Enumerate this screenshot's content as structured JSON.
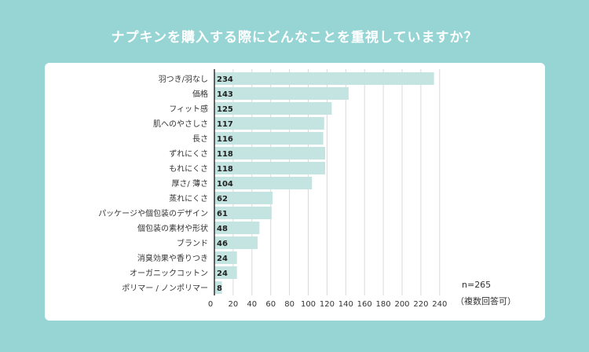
{
  "chart_data": {
    "type": "bar",
    "orientation": "horizontal",
    "title": "ナプキンを購入する際にどんなことを重視していますか？",
    "categories": [
      "羽つき/羽なし",
      "価格",
      "フィット感",
      "肌へのやさしさ",
      "長さ",
      "ずれにくさ",
      "もれにくさ",
      "厚さ/ 薄さ",
      "蒸れにくさ",
      "パッケージや個包装のデザイン",
      "個包装の素材や形状",
      "ブランド",
      "消臭効果や香りつき",
      "オーガニックコットン",
      "ポリマー / ノンポリマー"
    ],
    "values": [
      234,
      143,
      125,
      117,
      116,
      118,
      118,
      104,
      62,
      61,
      48,
      46,
      24,
      24,
      8
    ],
    "xlim": [
      0,
      250
    ],
    "xticks": [
      0,
      20,
      40,
      60,
      80,
      100,
      120,
      140,
      160,
      180,
      200,
      220,
      240
    ],
    "note_n": "n=265",
    "note_multi": "（複数回答可）",
    "bar_color": "#c3e4e1",
    "grid": true
  }
}
